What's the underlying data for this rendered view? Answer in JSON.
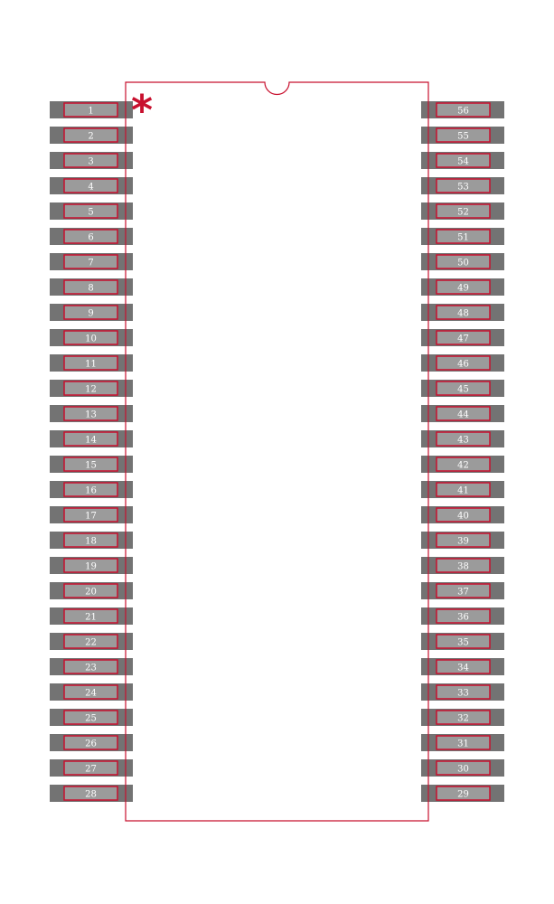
{
  "footprint": {
    "pin_count": 56,
    "pins_per_side": 28,
    "left_pins": [
      "1",
      "2",
      "3",
      "4",
      "5",
      "6",
      "7",
      "8",
      "9",
      "10",
      "11",
      "12",
      "13",
      "14",
      "15",
      "16",
      "17",
      "18",
      "19",
      "20",
      "21",
      "22",
      "23",
      "24",
      "25",
      "26",
      "27",
      "28"
    ],
    "right_pins": [
      "56",
      "55",
      "54",
      "53",
      "52",
      "51",
      "50",
      "49",
      "48",
      "47",
      "46",
      "45",
      "44",
      "43",
      "42",
      "41",
      "40",
      "39",
      "38",
      "37",
      "36",
      "35",
      "34",
      "33",
      "32",
      "31",
      "30",
      "29"
    ],
    "pin1_marker": "*",
    "colors": {
      "outline": "#c8102e",
      "pad": "#737373",
      "pad_inner": "#9b9b9b",
      "label": "#ffffff"
    }
  }
}
